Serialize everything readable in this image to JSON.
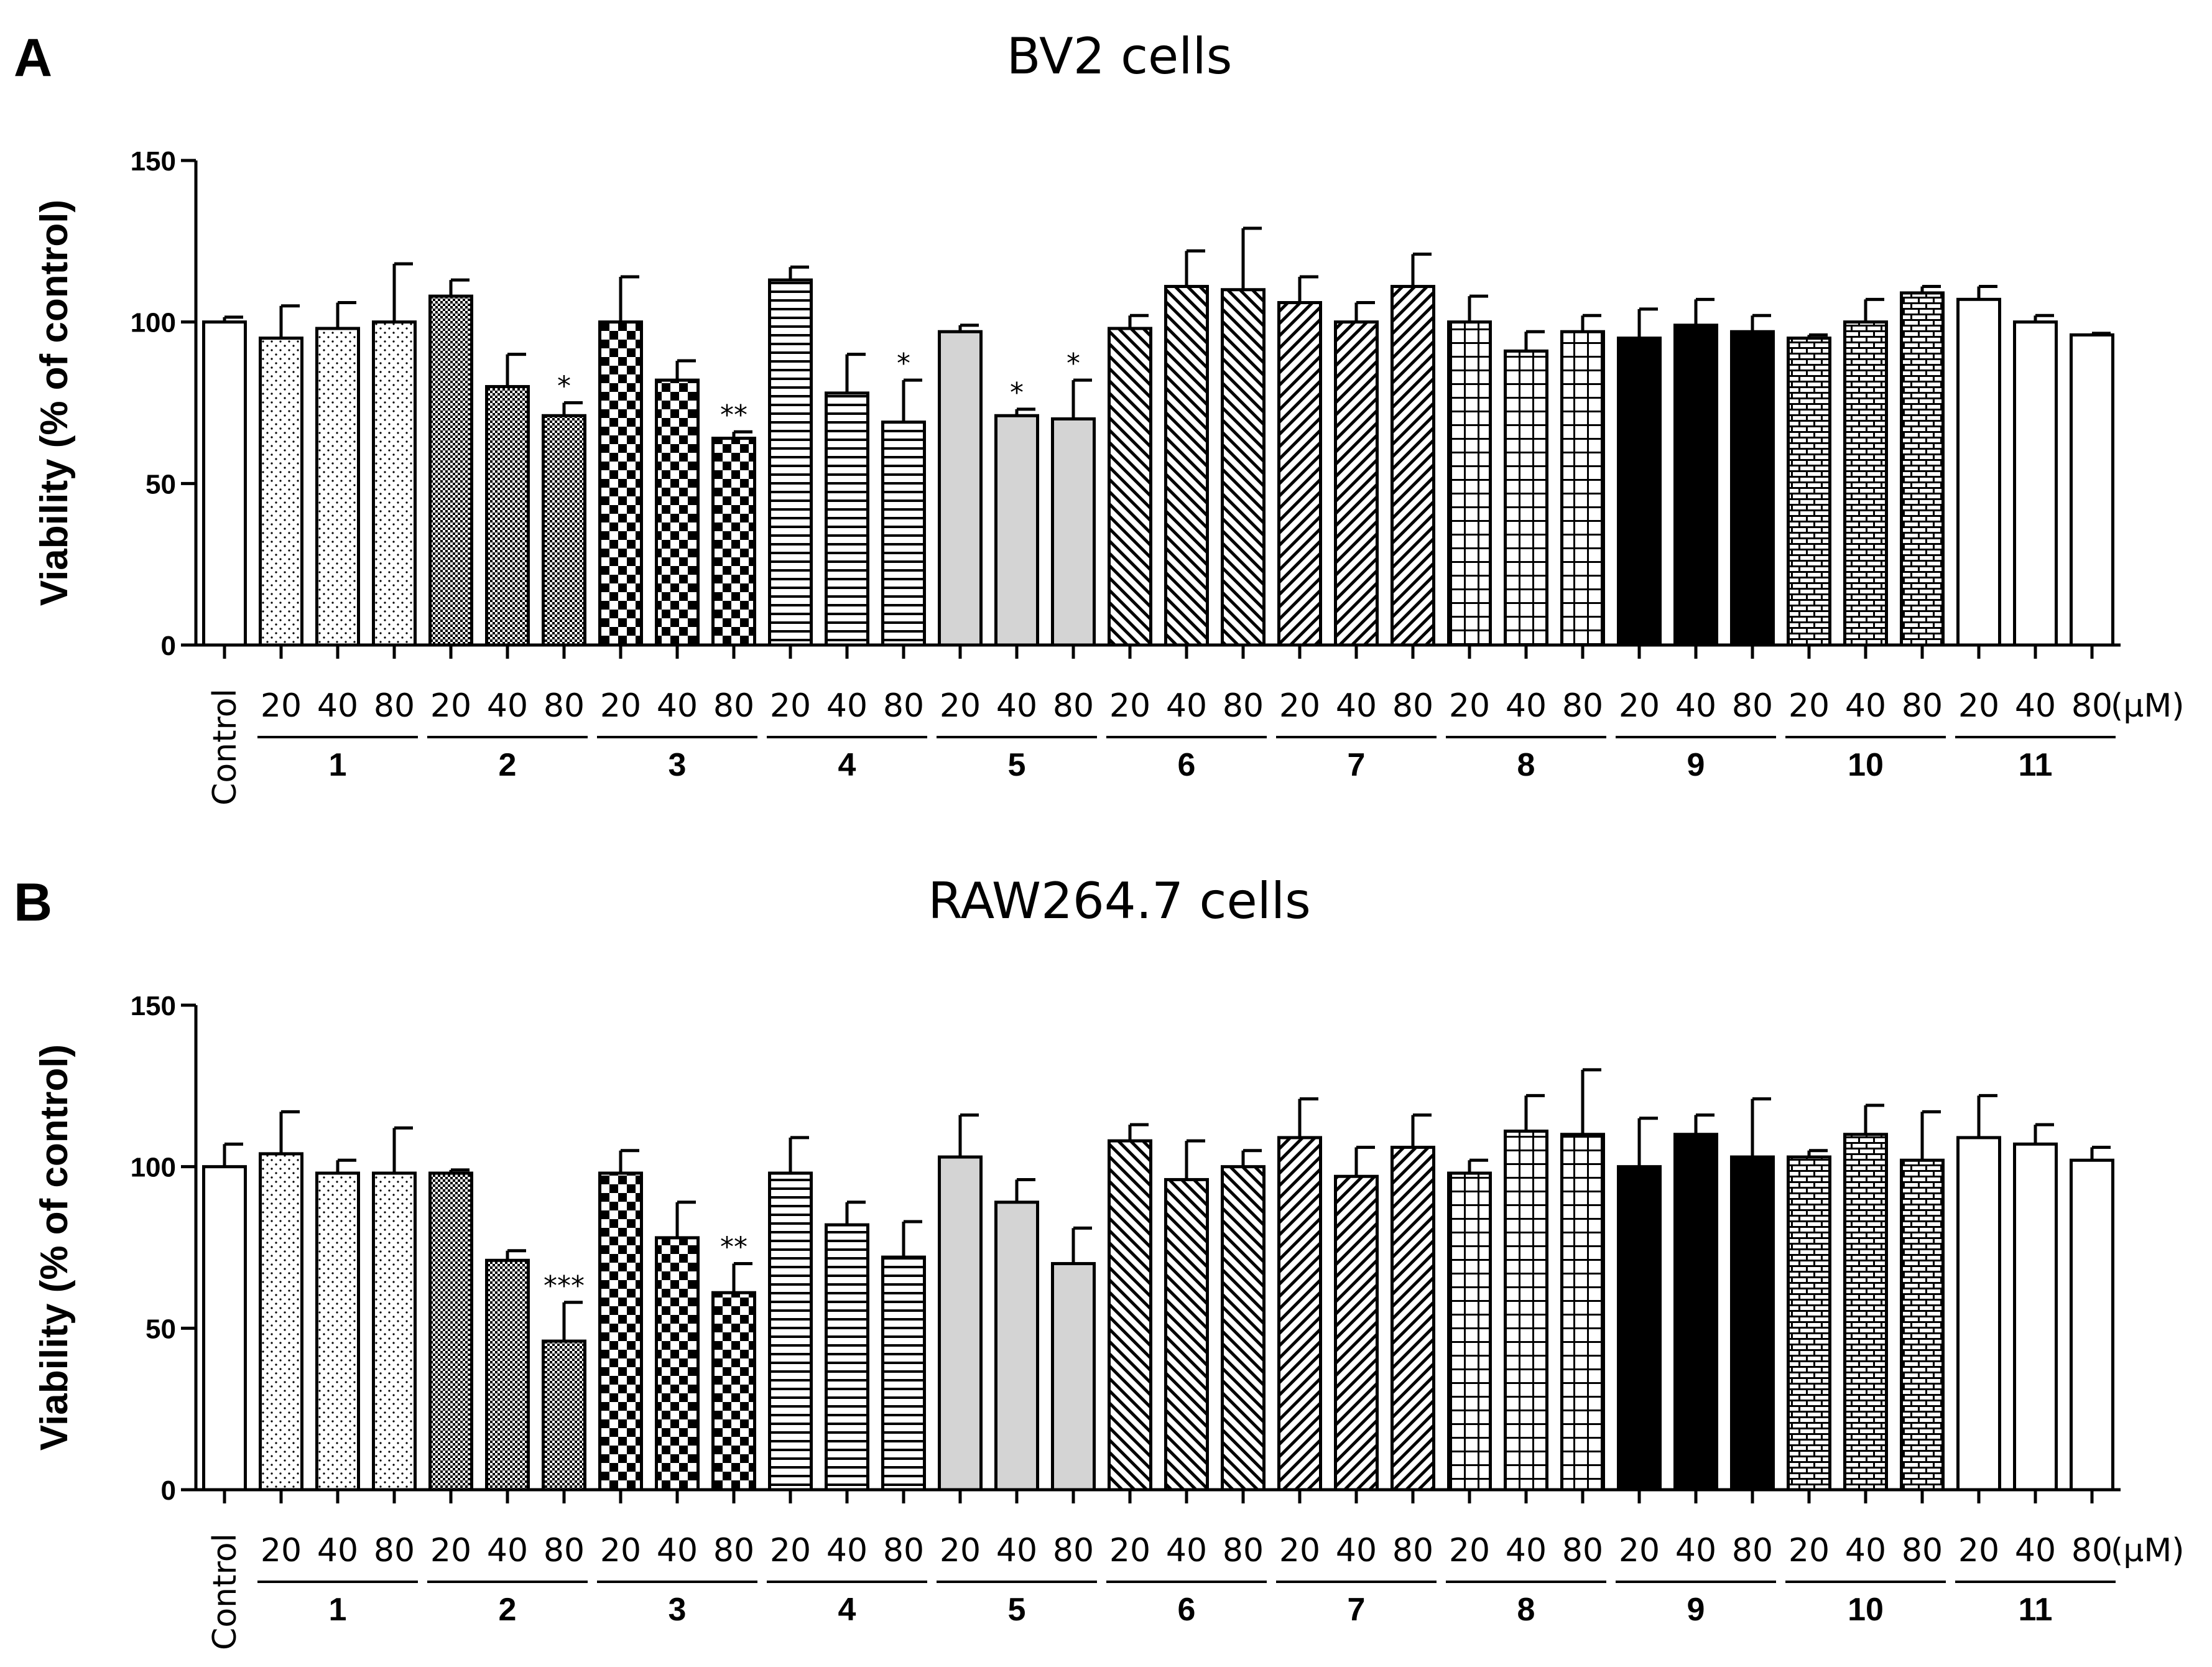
{
  "chart_data": [
    {
      "panel": "A",
      "type": "bar",
      "title": "BV2  cells",
      "ylabel": "Viability (% of control)",
      "ylim": [
        0,
        150
      ],
      "yticks": [
        0,
        50,
        100,
        150
      ],
      "control_label": "Control",
      "dose_labels": [
        "20",
        "40",
        "80"
      ],
      "unit_label": "(μM)",
      "control": {
        "value": 100,
        "error": 1.5
      },
      "groups": [
        {
          "compound": "1",
          "values": [
            95,
            98,
            100
          ],
          "errors": [
            10,
            8,
            18
          ],
          "sig": [
            "",
            "",
            ""
          ]
        },
        {
          "compound": "2",
          "values": [
            108,
            80,
            71
          ],
          "errors": [
            5,
            10,
            4
          ],
          "sig": [
            "",
            "",
            "*"
          ]
        },
        {
          "compound": "3",
          "values": [
            100,
            82,
            64
          ],
          "errors": [
            14,
            6,
            2
          ],
          "sig": [
            "",
            "",
            "**"
          ]
        },
        {
          "compound": "4",
          "values": [
            113,
            78,
            69
          ],
          "errors": [
            4,
            12,
            13
          ],
          "sig": [
            "",
            "",
            "*"
          ]
        },
        {
          "compound": "5",
          "values": [
            97,
            71,
            70
          ],
          "errors": [
            2,
            2,
            12
          ],
          "sig": [
            "",
            "*",
            "*"
          ]
        },
        {
          "compound": "6",
          "values": [
            98,
            111,
            110
          ],
          "errors": [
            4,
            11,
            19
          ],
          "sig": [
            "",
            "",
            ""
          ]
        },
        {
          "compound": "7",
          "values": [
            106,
            100,
            111
          ],
          "errors": [
            8,
            6,
            10
          ],
          "sig": [
            "",
            "",
            ""
          ]
        },
        {
          "compound": "8",
          "values": [
            100,
            91,
            97
          ],
          "errors": [
            8,
            6,
            5
          ],
          "sig": [
            "",
            "",
            ""
          ]
        },
        {
          "compound": "9",
          "values": [
            95,
            99,
            97
          ],
          "errors": [
            9,
            8,
            5
          ],
          "sig": [
            "",
            "",
            ""
          ]
        },
        {
          "compound": "10",
          "values": [
            95,
            100,
            109
          ],
          "errors": [
            1,
            7,
            2
          ],
          "sig": [
            "",
            "",
            ""
          ]
        },
        {
          "compound": "11",
          "values": [
            107,
            100,
            96
          ],
          "errors": [
            4,
            2,
            0.5
          ],
          "sig": [
            "",
            "",
            ""
          ]
        }
      ]
    },
    {
      "panel": "B",
      "type": "bar",
      "title": "RAW264.7  cells",
      "ylabel": "Viability (% of control)",
      "ylim": [
        0,
        150
      ],
      "yticks": [
        0,
        50,
        100,
        150
      ],
      "control_label": "Control",
      "dose_labels": [
        "20",
        "40",
        "80"
      ],
      "unit_label": "(μM)",
      "control": {
        "value": 100,
        "error": 7
      },
      "groups": [
        {
          "compound": "1",
          "values": [
            104,
            98,
            98
          ],
          "errors": [
            13,
            4,
            14
          ],
          "sig": [
            "",
            "",
            ""
          ]
        },
        {
          "compound": "2",
          "values": [
            98,
            71,
            46
          ],
          "errors": [
            1,
            3,
            12
          ],
          "sig": [
            "",
            "",
            "***"
          ]
        },
        {
          "compound": "3",
          "values": [
            98,
            78,
            61
          ],
          "errors": [
            7,
            11,
            9
          ],
          "sig": [
            "",
            "",
            "**"
          ]
        },
        {
          "compound": "4",
          "values": [
            98,
            82,
            72
          ],
          "errors": [
            11,
            7,
            11
          ],
          "sig": [
            "",
            "",
            ""
          ]
        },
        {
          "compound": "5",
          "values": [
            103,
            89,
            70
          ],
          "errors": [
            13,
            7,
            11
          ],
          "sig": [
            "",
            "",
            ""
          ]
        },
        {
          "compound": "6",
          "values": [
            108,
            96,
            100
          ],
          "errors": [
            5,
            12,
            5
          ],
          "sig": [
            "",
            "",
            ""
          ]
        },
        {
          "compound": "7",
          "values": [
            109,
            97,
            106
          ],
          "errors": [
            12,
            9,
            10
          ],
          "sig": [
            "",
            "",
            ""
          ]
        },
        {
          "compound": "8",
          "values": [
            98,
            111,
            110
          ],
          "errors": [
            4,
            11,
            20
          ],
          "sig": [
            "",
            "",
            ""
          ]
        },
        {
          "compound": "9",
          "values": [
            100,
            110,
            103
          ],
          "errors": [
            15,
            6,
            18
          ],
          "sig": [
            "",
            "",
            ""
          ]
        },
        {
          "compound": "10",
          "values": [
            103,
            110,
            102
          ],
          "errors": [
            2,
            9,
            15
          ],
          "sig": [
            "",
            "",
            ""
          ]
        },
        {
          "compound": "11",
          "values": [
            109,
            107,
            102
          ],
          "errors": [
            13,
            6,
            4
          ],
          "sig": [
            "",
            "",
            ""
          ]
        }
      ]
    }
  ]
}
